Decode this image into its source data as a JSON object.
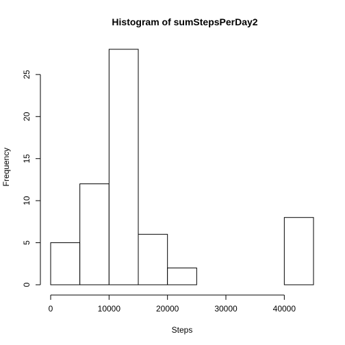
{
  "chart_data": {
    "type": "bar",
    "title": "Histogram of sumStepsPerDay2",
    "xlabel": "Steps",
    "ylabel": "Frequency",
    "bins": [
      {
        "from": 0,
        "to": 5000,
        "count": 5
      },
      {
        "from": 5000,
        "to": 10000,
        "count": 12
      },
      {
        "from": 10000,
        "to": 15000,
        "count": 28
      },
      {
        "from": 15000,
        "to": 20000,
        "count": 6
      },
      {
        "from": 20000,
        "to": 25000,
        "count": 2
      },
      {
        "from": 25000,
        "to": 30000,
        "count": 0
      },
      {
        "from": 30000,
        "to": 35000,
        "count": 0
      },
      {
        "from": 35000,
        "to": 40000,
        "count": 0
      },
      {
        "from": 40000,
        "to": 45000,
        "count": 8
      }
    ],
    "x_ticks": [
      0,
      10000,
      20000,
      30000,
      40000
    ],
    "x_tick_labels": [
      "0",
      "10000",
      "20000",
      "30000",
      "40000"
    ],
    "y_ticks": [
      0,
      5,
      10,
      15,
      20,
      25
    ],
    "y_tick_labels": [
      "0",
      "5",
      "10",
      "15",
      "20",
      "25"
    ],
    "xlim": [
      0,
      45000
    ],
    "ylim": [
      0,
      28
    ],
    "grid": false,
    "bar_fill": "#ffffff",
    "bar_stroke": "#000000"
  }
}
